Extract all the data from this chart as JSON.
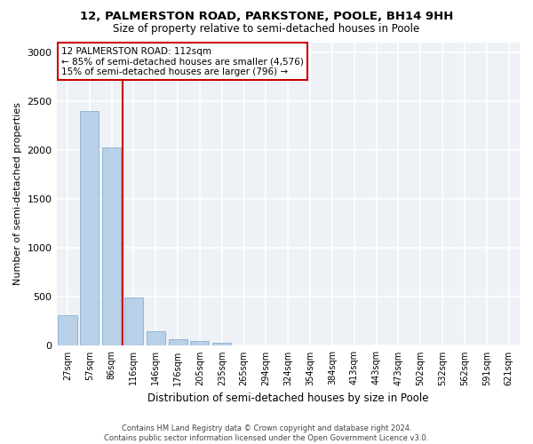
{
  "title_line1": "12, PALMERSTON ROAD, PARKSTONE, POOLE, BH14 9HH",
  "title_line2": "Size of property relative to semi-detached houses in Poole",
  "xlabel": "Distribution of semi-detached houses by size in Poole",
  "ylabel": "Number of semi-detached properties",
  "categories": [
    "27sqm",
    "57sqm",
    "86sqm",
    "116sqm",
    "146sqm",
    "176sqm",
    "205sqm",
    "235sqm",
    "265sqm",
    "294sqm",
    "324sqm",
    "354sqm",
    "384sqm",
    "413sqm",
    "443sqm",
    "473sqm",
    "502sqm",
    "532sqm",
    "562sqm",
    "591sqm",
    "621sqm"
  ],
  "values": [
    310,
    2400,
    2030,
    495,
    150,
    70,
    45,
    35,
    0,
    0,
    0,
    0,
    0,
    0,
    0,
    0,
    0,
    0,
    0,
    0,
    0
  ],
  "bar_color": "#b8d0e8",
  "bar_edge_color": "#8ab0d0",
  "vline_x": 2.5,
  "annotation_title": "12 PALMERSTON ROAD: 112sqm",
  "annotation_line2": "← 85% of semi-detached houses are smaller (4,576)",
  "annotation_line3": "15% of semi-detached houses are larger (796) →",
  "vline_color": "#cc0000",
  "annotation_box_edgecolor": "#cc0000",
  "ylim": [
    0,
    3100
  ],
  "yticks": [
    0,
    500,
    1000,
    1500,
    2000,
    2500,
    3000
  ],
  "background_color": "#eef2f7",
  "grid_color": "#ffffff",
  "footer_line1": "Contains HM Land Registry data © Crown copyright and database right 2024.",
  "footer_line2": "Contains public sector information licensed under the Open Government Licence v3.0."
}
